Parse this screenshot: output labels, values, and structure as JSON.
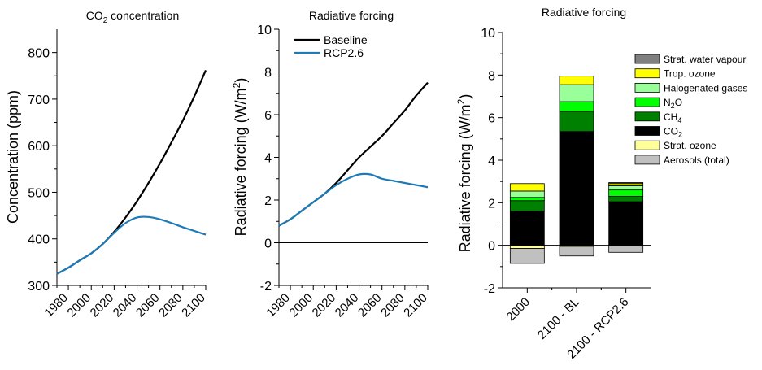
{
  "chart_data": [
    {
      "type": "line",
      "title_main": "CO",
      "title_sub": "2",
      "title_rest": " concentration",
      "ylabel": "Concentration (ppm)",
      "ylim": [
        300,
        850
      ],
      "xlim": [
        1970,
        2100
      ],
      "yticks": [
        300,
        400,
        500,
        600,
        700,
        800
      ],
      "xticks": [
        1980,
        2000,
        2020,
        2040,
        2060,
        2080,
        2100
      ],
      "series": [
        {
          "color": "#000000",
          "x": [
            1970,
            1980,
            1990,
            2000,
            2010,
            2020,
            2030,
            2040,
            2050,
            2060,
            2070,
            2080,
            2090,
            2100
          ],
          "y": [
            325,
            338,
            354,
            369,
            389,
            415,
            446,
            481,
            520,
            562,
            607,
            654,
            706,
            762
          ]
        },
        {
          "color": "#1f7ab8",
          "x": [
            1970,
            1980,
            1990,
            2000,
            2010,
            2020,
            2030,
            2040,
            2050,
            2060,
            2070,
            2080,
            2090,
            2100
          ],
          "y": [
            325,
            338,
            354,
            369,
            389,
            413,
            434,
            446,
            447,
            442,
            434,
            425,
            417,
            409
          ]
        }
      ]
    },
    {
      "type": "line",
      "title": "Radiative forcing",
      "ylabel_main": "Radiative forcing (W/m",
      "ylabel_sup": "2",
      "ylabel_end": ")",
      "ylim": [
        -2,
        10
      ],
      "xlim": [
        1970,
        2100
      ],
      "yticks": [
        -2,
        0,
        2,
        4,
        6,
        8,
        10
      ],
      "xticks": [
        1980,
        2000,
        2020,
        2040,
        2060,
        2080,
        2100
      ],
      "zero_line": true,
      "legend": [
        "Baseline",
        "RCP2.6"
      ],
      "legend_position": "top-left",
      "series": [
        {
          "name": "Baseline",
          "color": "#000000",
          "x": [
            1970,
            1980,
            1990,
            2000,
            2010,
            2020,
            2030,
            2040,
            2050,
            2060,
            2070,
            2080,
            2090,
            2100
          ],
          "y": [
            0.8,
            1.1,
            1.5,
            1.9,
            2.3,
            2.8,
            3.4,
            4.0,
            4.5,
            5.0,
            5.6,
            6.2,
            6.9,
            7.5
          ]
        },
        {
          "name": "RCP2.6",
          "color": "#1f7ab8",
          "x": [
            1970,
            1980,
            1990,
            2000,
            2010,
            2020,
            2030,
            2040,
            2050,
            2060,
            2070,
            2080,
            2090,
            2100
          ],
          "y": [
            0.8,
            1.1,
            1.5,
            1.9,
            2.3,
            2.7,
            3.0,
            3.2,
            3.2,
            3.0,
            2.9,
            2.8,
            2.7,
            2.6
          ]
        }
      ]
    },
    {
      "type": "bar",
      "stacked": true,
      "title": "Radiative forcing",
      "ylabel_main": "Radiative forcing (W/m",
      "ylabel_sup": "2",
      "ylabel_end": ")",
      "ylim": [
        -2,
        10
      ],
      "yticks": [
        -2,
        0,
        2,
        4,
        6,
        8,
        10
      ],
      "zero_line": true,
      "categories": [
        "2000",
        "2100 - BL",
        "2100 - RCP2.6"
      ],
      "legend_position": "top-right",
      "legend": [
        {
          "main": "Strat. water vapour",
          "sub": "",
          "rest": "",
          "color": "#808080"
        },
        {
          "main": "Trop. ozone",
          "sub": "",
          "rest": "",
          "color": "#ffff00"
        },
        {
          "main": "Halogenated gases",
          "sub": "",
          "rest": "",
          "color": "#99ff99"
        },
        {
          "main": "N",
          "sub": "2",
          "rest": "O",
          "color": "#00ff00"
        },
        {
          "main": "CH",
          "sub": "4",
          "rest": "",
          "color": "#008000"
        },
        {
          "main": "CO",
          "sub": "2",
          "rest": "",
          "color": "#000000"
        },
        {
          "main": "Strat. ozone",
          "sub": "",
          "rest": "",
          "color": "#ffff99"
        },
        {
          "main": "Aerosols (total)",
          "sub": "",
          "rest": "",
          "color": "#c0c0c0"
        }
      ],
      "positive_series": [
        {
          "name": "CO2",
          "color": "#000000",
          "values": [
            1.6,
            5.35,
            2.05
          ]
        },
        {
          "name": "CH4",
          "color": "#008000",
          "values": [
            0.5,
            0.95,
            0.25
          ]
        },
        {
          "name": "N2O",
          "color": "#00ff00",
          "values": [
            0.15,
            0.45,
            0.3
          ]
        },
        {
          "name": "Halogenated gases",
          "color": "#99ff99",
          "values": [
            0.3,
            0.8,
            0.2
          ]
        },
        {
          "name": "Trop. ozone",
          "color": "#ffff00",
          "values": [
            0.35,
            0.4,
            0.1
          ]
        },
        {
          "name": "Strat. water vapour",
          "color": "#808080",
          "values": [
            0.0,
            0.0,
            0.05
          ]
        }
      ],
      "negative_series": [
        {
          "name": "Strat. ozone",
          "color": "#ffff99",
          "values": [
            -0.15,
            -0.05,
            -0.03
          ]
        },
        {
          "name": "Aerosols (total)",
          "color": "#c0c0c0",
          "values": [
            -0.7,
            -0.45,
            -0.3
          ]
        }
      ]
    }
  ]
}
